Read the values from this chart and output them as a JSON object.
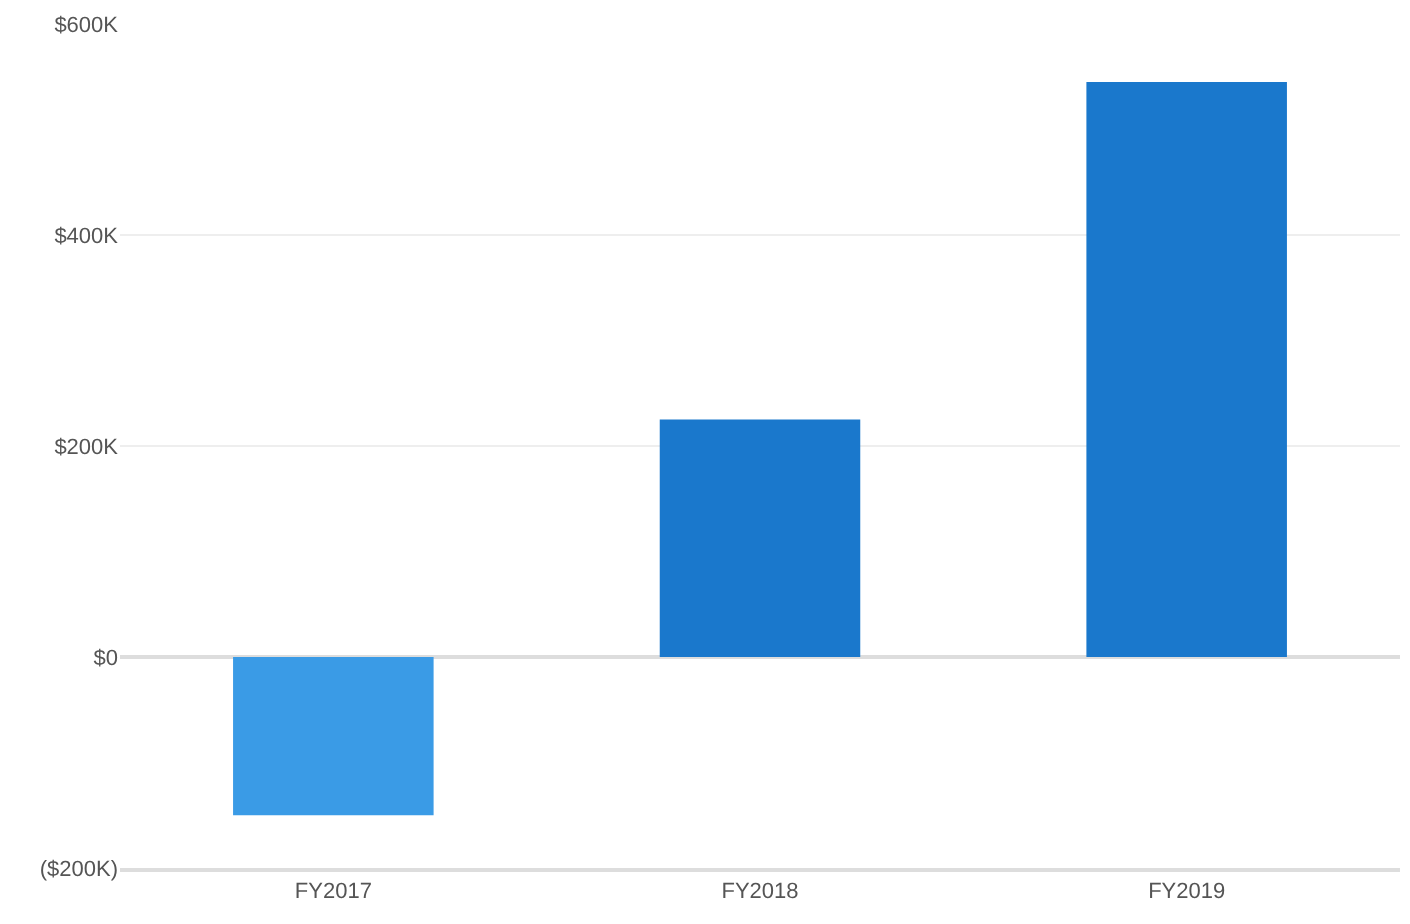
{
  "chart_data": {
    "type": "bar",
    "categories": [
      "FY2017",
      "FY2018",
      "FY2019"
    ],
    "values": [
      -150000,
      225000,
      545000
    ],
    "colors": [
      "#3a9be6",
      "#1a78cc",
      "#1a78cc"
    ],
    "ylim": [
      -200000,
      600000
    ],
    "yticks": [
      {
        "value": -200000,
        "label": "($200K)"
      },
      {
        "value": 0,
        "label": "$0"
      },
      {
        "value": 200000,
        "label": "$200K"
      },
      {
        "value": 400000,
        "label": "$400K"
      },
      {
        "value": 600000,
        "label": "$600K"
      }
    ],
    "grid": "y"
  }
}
